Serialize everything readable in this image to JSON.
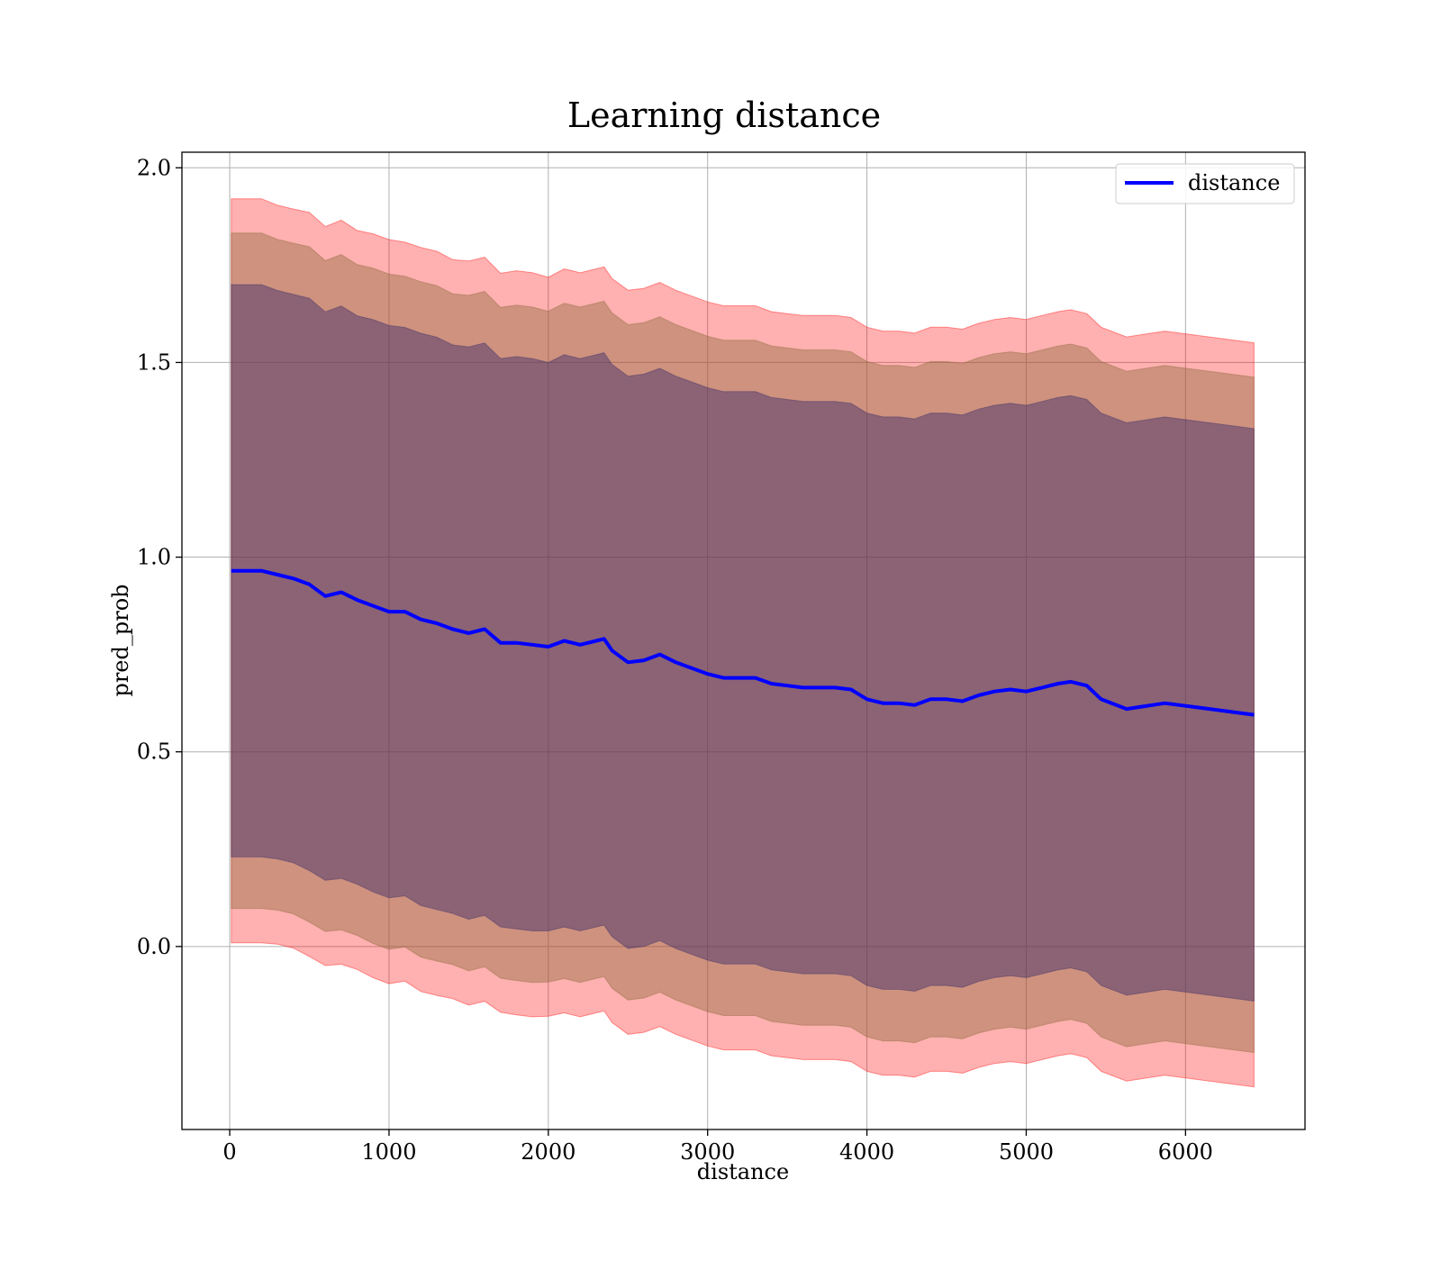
{
  "chart_data": {
    "type": "line",
    "title": "Learning distance",
    "xlabel": "distance",
    "ylabel": "pred_prob",
    "xlim": [
      -300,
      6750
    ],
    "ylim": [
      -0.47,
      2.04
    ],
    "xticks": [
      0,
      1000,
      2000,
      3000,
      4000,
      5000,
      6000
    ],
    "xtick_labels": [
      "0",
      "1000",
      "2000",
      "3000",
      "4000",
      "5000",
      "6000"
    ],
    "yticks": [
      0.0,
      0.5,
      1.0,
      1.5,
      2.0
    ],
    "ytick_labels": [
      "0.0",
      "0.5",
      "1.0",
      "1.5",
      "2.0"
    ],
    "grid": true,
    "legend": {
      "position": "top-right",
      "entries": [
        "distance"
      ]
    },
    "colors": {
      "line": "#0000ff",
      "band": "#ff0000",
      "band_inner_tint": "#3a2a6a",
      "grid": "#b0b0b0"
    },
    "series": [
      {
        "name": "distance",
        "x": [
          10,
          100,
          200,
          300,
          400,
          500,
          600,
          700,
          800,
          900,
          1000,
          1100,
          1200,
          1300,
          1400,
          1500,
          1600,
          1700,
          1800,
          1900,
          2000,
          2100,
          2200,
          2300,
          2350,
          2400,
          2500,
          2600,
          2700,
          2800,
          2900,
          3000,
          3100,
          3200,
          3300,
          3400,
          3500,
          3600,
          3700,
          3800,
          3900,
          4000,
          4100,
          4200,
          4300,
          4400,
          4500,
          4600,
          4700,
          4800,
          4900,
          5000,
          5100,
          5200,
          5280,
          5380,
          5470,
          5630,
          5870,
          6150,
          6430
        ],
        "mean": [
          0.965,
          0.965,
          0.965,
          0.955,
          0.945,
          0.93,
          0.9,
          0.91,
          0.89,
          0.875,
          0.86,
          0.86,
          0.84,
          0.83,
          0.815,
          0.805,
          0.815,
          0.78,
          0.78,
          0.775,
          0.77,
          0.785,
          0.775,
          0.785,
          0.79,
          0.76,
          0.73,
          0.735,
          0.75,
          0.73,
          0.715,
          0.7,
          0.69,
          0.69,
          0.69,
          0.675,
          0.67,
          0.665,
          0.665,
          0.665,
          0.66,
          0.635,
          0.625,
          0.625,
          0.62,
          0.635,
          0.635,
          0.63,
          0.645,
          0.655,
          0.66,
          0.655,
          0.665,
          0.675,
          0.68,
          0.67,
          0.635,
          0.61,
          0.625,
          0.61,
          0.595
        ],
        "std": [
          0.735,
          0.735,
          0.735,
          0.73,
          0.73,
          0.735,
          0.73,
          0.735,
          0.73,
          0.735,
          0.735,
          0.73,
          0.735,
          0.735,
          0.73,
          0.735,
          0.735,
          0.73,
          0.735,
          0.735,
          0.73,
          0.735,
          0.735,
          0.735,
          0.735,
          0.735,
          0.735,
          0.735,
          0.735,
          0.735,
          0.735,
          0.735,
          0.735,
          0.735,
          0.735,
          0.735,
          0.735,
          0.735,
          0.735,
          0.735,
          0.735,
          0.735,
          0.735,
          0.735,
          0.735,
          0.735,
          0.735,
          0.735,
          0.735,
          0.735,
          0.735,
          0.735,
          0.735,
          0.735,
          0.735,
          0.735,
          0.735,
          0.735,
          0.735,
          0.735,
          0.735
        ]
      }
    ],
    "bands_in_std": [
      1.3,
      1.18,
      1.0
    ]
  }
}
